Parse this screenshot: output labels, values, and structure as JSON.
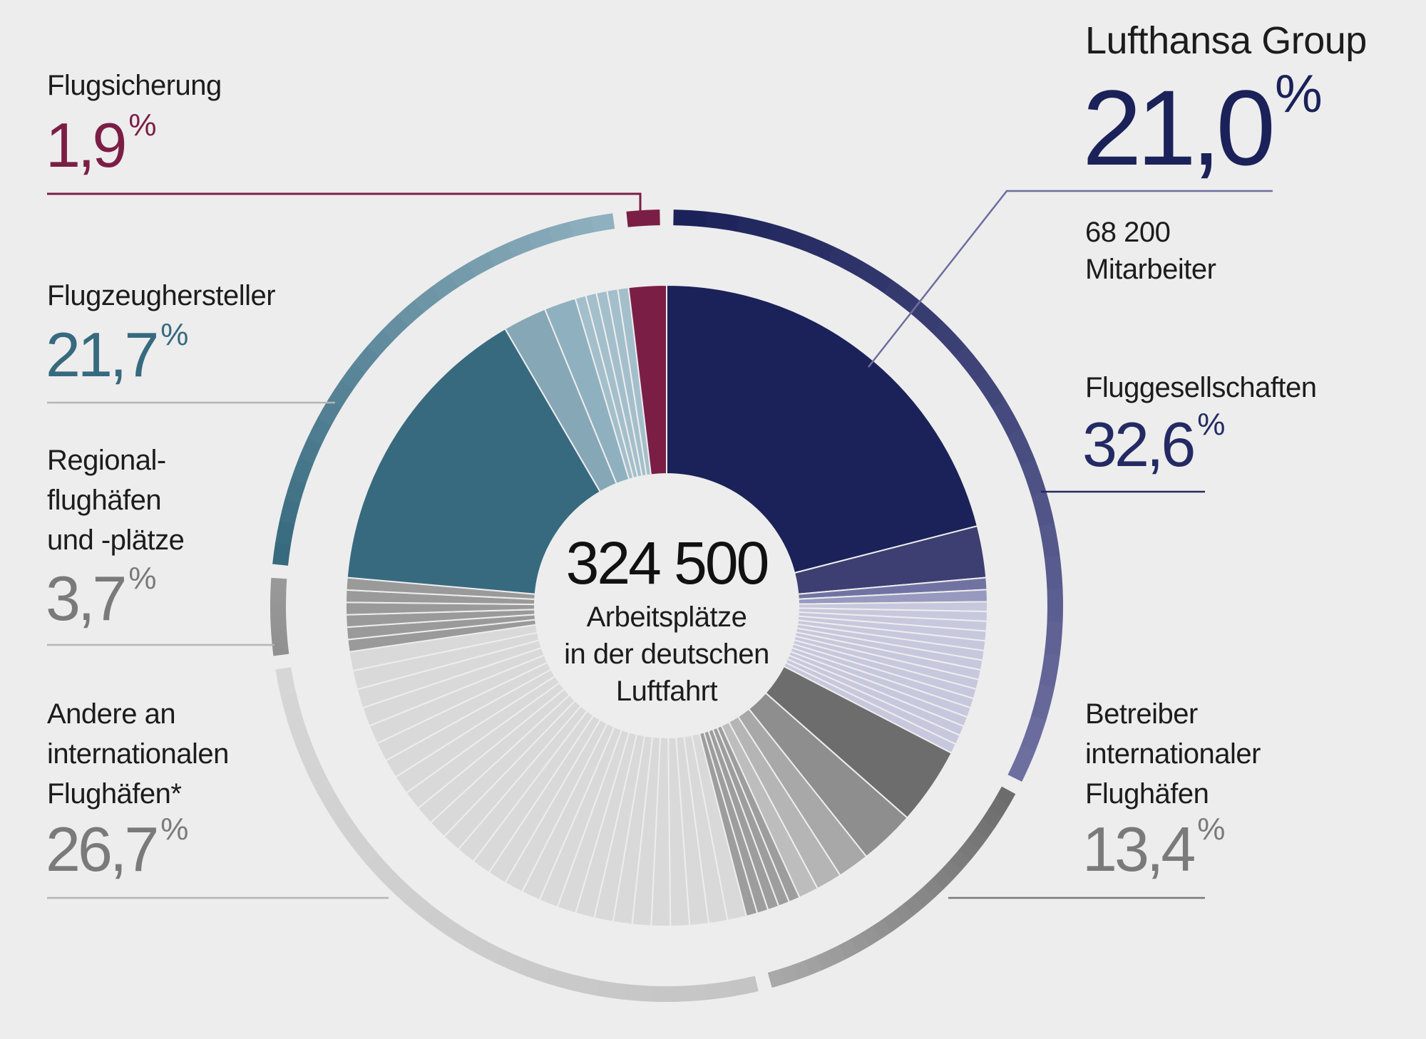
{
  "chart_data": {
    "type": "donut",
    "total": "324 500",
    "center_lines": [
      "Arbeitsplätze",
      "in der deutschen",
      "Luftfahrt"
    ],
    "percent_sign": "%",
    "groups": [
      {
        "id": "flugsicherung",
        "name": "Flugsicherung",
        "percent": 1.9,
        "percent_label": "1,9",
        "color": "#7b1e45"
      },
      {
        "id": "fluggesellschaften",
        "name": "Fluggesellschaften",
        "percent": 32.6,
        "percent_label": "32,6",
        "color": "#2a3168"
      },
      {
        "id": "betreiber",
        "name": "Betreiber internationaler Flughäfen",
        "name_lines": [
          "Betreiber",
          "internationaler",
          "Flughäfen"
        ],
        "percent": 13.4,
        "percent_label": "13,4",
        "color": "#7a7a7a"
      },
      {
        "id": "andere",
        "name": "Andere an internationalen Flughäfen*",
        "name_lines": [
          "Andere an",
          "internationalen",
          "Flughäfen*"
        ],
        "percent": 26.7,
        "percent_label": "26,7",
        "color": "#bdbdbd"
      },
      {
        "id": "regional",
        "name": "Regionalflughäfen und -plätze",
        "name_lines": [
          "Regional-",
          "flughäfen",
          "und -plätze"
        ],
        "percent": 3.7,
        "percent_label": "3,7",
        "color": "#8c8c8c"
      },
      {
        "id": "hersteller",
        "name": "Flugzeughersteller",
        "percent": 21.7,
        "percent_label": "21,7",
        "color": "#3d6e82"
      }
    ],
    "highlight": {
      "name": "Lufthansa Group",
      "percent": 21.0,
      "percent_label": "21,0",
      "employees": "68 200",
      "employees_label": "Mitarbeiter"
    }
  },
  "colors": {
    "background": "#ededed",
    "lufthansa": "#1b2259",
    "airlines_text": "#232a63",
    "flugsicherung": "#7b1e45",
    "hersteller": "#376a7f",
    "regional_text": "#7a7a7a",
    "andere_text": "#7a7a7a",
    "betreiber_text": "#7a7a7a"
  }
}
